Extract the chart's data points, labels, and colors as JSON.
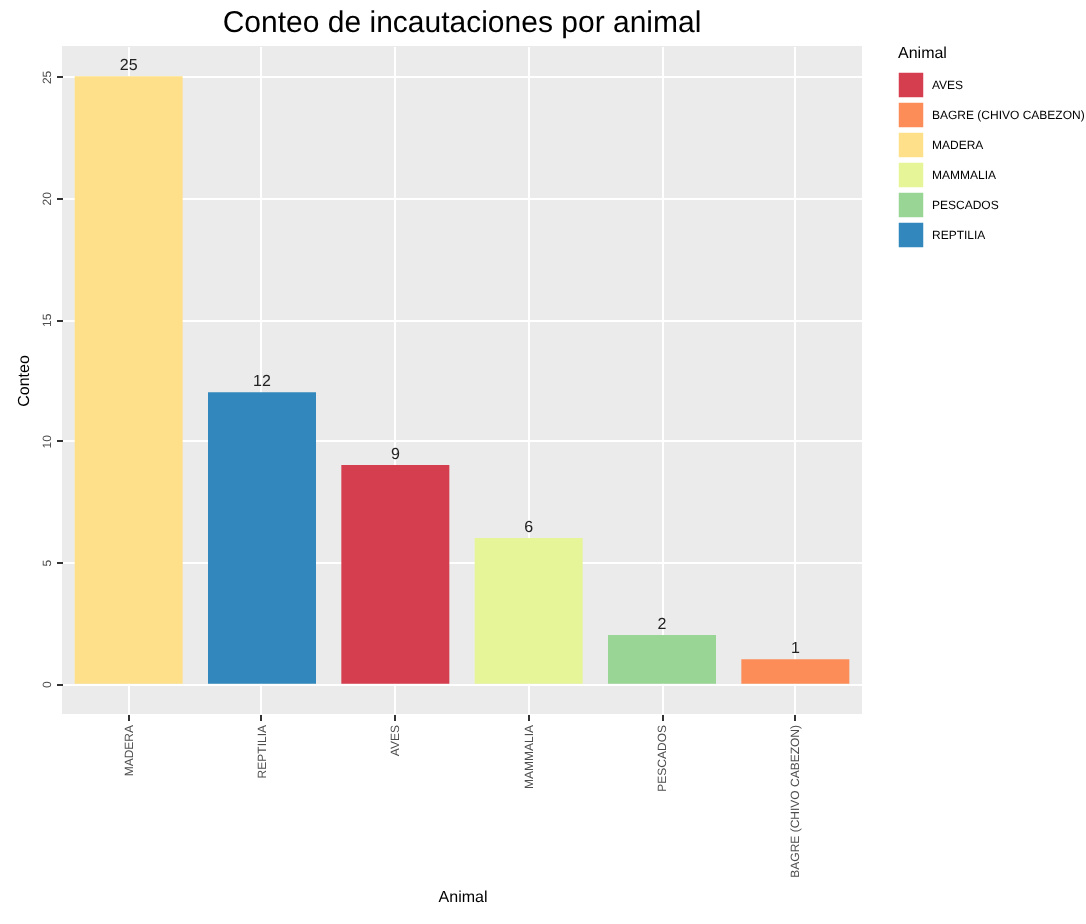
{
  "chart_data": {
    "type": "bar",
    "title": "Conteo de incautaciones por animal",
    "xlabel": "Animal",
    "ylabel": "Conteo",
    "legend_title": "Animal",
    "categories": [
      "MADERA",
      "REPTILIA",
      "AVES",
      "MAMMALIA",
      "PESCADOS",
      "BAGRE (CHIVO CABEZON)"
    ],
    "series": [
      {
        "name": "AVES",
        "color": "#d53e4f",
        "values": [
          null,
          null,
          9,
          null,
          null,
          null
        ]
      },
      {
        "name": "BAGRE (CHIVO CABEZON)",
        "color": "#fc8d59",
        "values": [
          null,
          null,
          null,
          null,
          null,
          1
        ]
      },
      {
        "name": "MADERA",
        "color": "#fee08b",
        "values": [
          25,
          null,
          null,
          null,
          null,
          null
        ]
      },
      {
        "name": "MAMMALIA",
        "color": "#e6f598",
        "values": [
          null,
          null,
          null,
          6,
          null,
          null
        ]
      },
      {
        "name": "PESCADOS",
        "color": "#99d594",
        "values": [
          null,
          null,
          null,
          null,
          2,
          null
        ]
      },
      {
        "name": "REPTILIA",
        "color": "#3288bd",
        "values": [
          null,
          12,
          null,
          null,
          null,
          null
        ]
      }
    ],
    "ylim": [
      -1.25,
      26.25
    ],
    "yticks": [
      0,
      5,
      10,
      15,
      20,
      25
    ],
    "grid": true,
    "legend": "right",
    "data_labels": true
  }
}
